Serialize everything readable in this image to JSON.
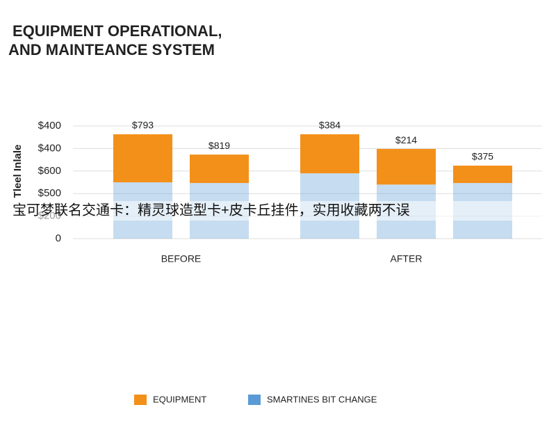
{
  "chart_data": {
    "type": "stacked_bar",
    "title_lines": [
      "EQUIPMENT OPERATIONAL,",
      "AND MAINTEANCE SYSTEM"
    ],
    "ylabel": "Tleel Inlale",
    "ylim": [
      0,
      5
    ],
    "yticks": [
      0,
      {
        "value": 1,
        "label": "$200"
      },
      {
        "value": 2,
        "label": "$500"
      },
      {
        "value": 3,
        "label": "$600"
      },
      {
        "value": 4,
        "label": "$400"
      },
      {
        "value": 5,
        "label": "$400"
      }
    ],
    "grid": true,
    "series": [
      {
        "name": "EQUIPMENT",
        "color": "#f39019"
      },
      {
        "name": "SMARTINES BIT CHANGE",
        "color": "#5b9bd5"
      }
    ],
    "groups": [
      {
        "name": "BEFORE",
        "bars": [
          {
            "label": "$793",
            "values": [
              2.13,
              2.5
            ]
          },
          {
            "label": "$819",
            "values": [
              1.26,
              2.47
            ]
          }
        ]
      },
      {
        "name": "AFTER",
        "bars": [
          {
            "label": "$384",
            "values": [
              1.73,
              2.9
            ]
          },
          {
            "label": "$214",
            "values": [
              1.58,
              2.4
            ]
          },
          {
            "label": "$375",
            "values": [
              0.77,
              2.47
            ]
          }
        ]
      }
    ],
    "overlay_text": "宝可梦联名交通卡：精灵球造型卡+皮卡丘挂件，实用收藏两不误"
  }
}
